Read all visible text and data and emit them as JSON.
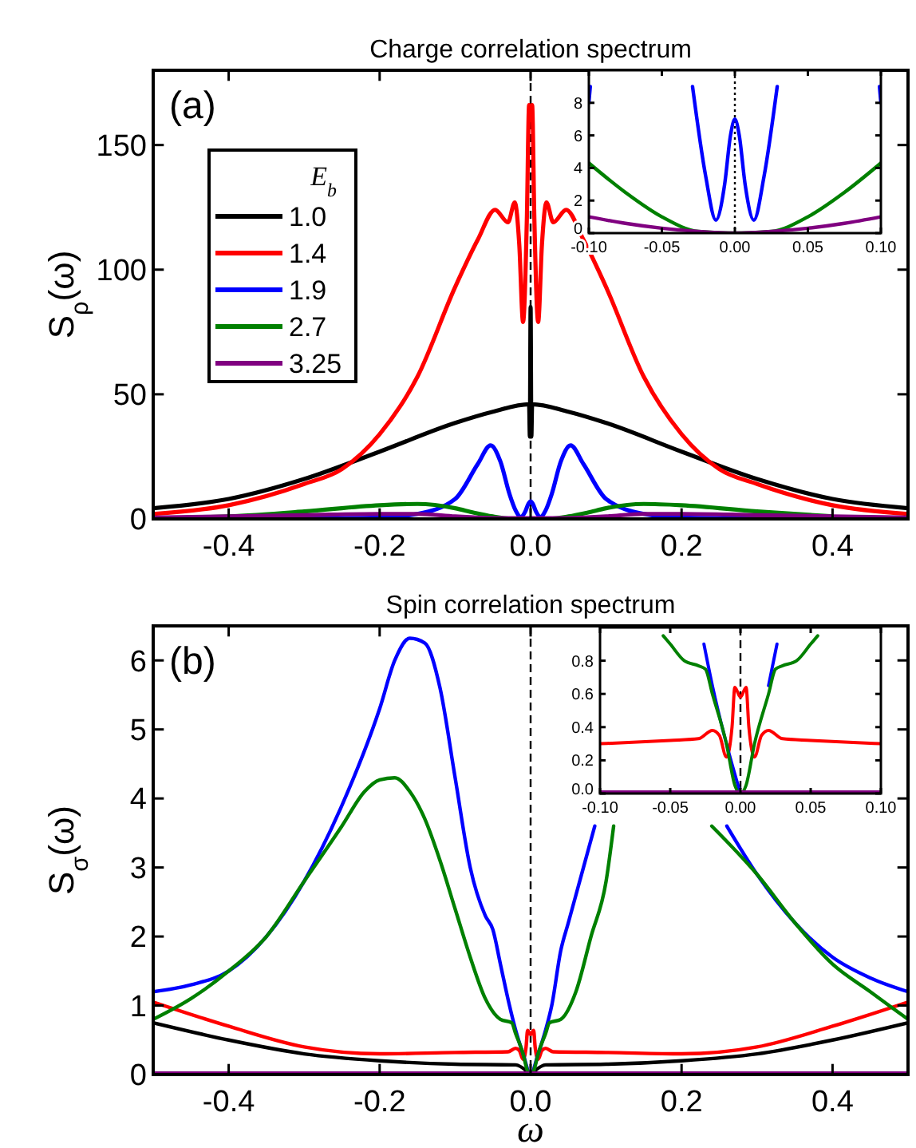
{
  "chart_data": [
    {
      "type": "line",
      "title": "Charge correlation spectrum",
      "ylabel": "S$_{ρ}$(ω)",
      "annotations": [
        "(a)"
      ],
      "legend": "top left",
      "legend_title": "E$_{b}$",
      "xlim": [
        -0.5,
        0.5
      ],
      "ylim": [
        0,
        180
      ],
      "xticks": [
        {
          "value": -0.4,
          "label": "-0.4"
        },
        {
          "value": -0.2,
          "label": "-0.2"
        },
        {
          "value": 0,
          "label": "0.0"
        },
        {
          "value": 0.2,
          "label": "0.2"
        },
        {
          "value": 0.4,
          "label": "0.4"
        }
      ],
      "yticks": [
        0,
        50,
        100,
        150
      ],
      "ref_lines": [
        {
          "axis": "x",
          "value": 0,
          "line_style": "dashed"
        }
      ],
      "series": [
        {
          "name": "1.0",
          "color": "#000000",
          "x": [
            -0.5,
            -0.4,
            -0.3,
            -0.2,
            -0.1,
            -0.05,
            -0.002,
            -0.001,
            0,
            0.001,
            0.002,
            0.05,
            0.1,
            0.2,
            0.3,
            0.4,
            0.5
          ],
          "values": [
            4.3,
            8,
            16,
            27,
            38.5,
            43,
            46,
            33,
            85,
            33,
            46,
            43,
            38.5,
            27,
            16,
            8,
            4.3
          ]
        },
        {
          "name": "1.4",
          "color": "#ff0000",
          "x": [
            -0.5,
            -0.4,
            -0.3,
            -0.25,
            -0.2,
            -0.15,
            -0.1,
            -0.07,
            -0.047,
            -0.03,
            -0.021,
            -0.015,
            -0.01,
            -0.005,
            -0.002,
            0,
            0.002,
            0.005,
            0.01,
            0.015,
            0.021,
            0.03,
            0.047,
            0.07,
            0.1,
            0.15,
            0.2,
            0.25,
            0.3,
            0.4,
            0.5
          ],
          "values": [
            2,
            5.5,
            14,
            20,
            34,
            57,
            93,
            112,
            124,
            119,
            127,
            110,
            79,
            120,
            166,
            160,
            166,
            120,
            79,
            110,
            127,
            119,
            124,
            112,
            93,
            57,
            34,
            20,
            14,
            5.5,
            2
          ]
        },
        {
          "name": "1.9",
          "color": "#0000ff",
          "x": [
            -0.5,
            -0.3,
            -0.2,
            -0.15,
            -0.1,
            -0.07,
            -0.053,
            -0.04,
            -0.028,
            -0.02,
            -0.013,
            -0.007,
            -0.003,
            0,
            0.003,
            0.007,
            0.013,
            0.02,
            0.028,
            0.04,
            0.053,
            0.07,
            0.1,
            0.15,
            0.2,
            0.3,
            0.5
          ],
          "values": [
            0,
            0.1,
            0.5,
            2,
            8,
            22,
            29.5,
            23,
            10,
            3.5,
            0.8,
            3,
            6,
            7,
            6,
            3,
            0.8,
            3.5,
            10,
            23,
            29.5,
            22,
            8,
            2,
            0.5,
            0.1,
            0
          ]
        },
        {
          "name": "2.7",
          "color": "#008000",
          "x": [
            -0.5,
            -0.4,
            -0.3,
            -0.2,
            -0.15,
            -0.1,
            -0.075,
            -0.05,
            -0.025,
            0,
            0.025,
            0.05,
            0.075,
            0.1,
            0.15,
            0.2,
            0.3,
            0.4
          ],
          "values": [
            0.3,
            1,
            3,
            5.5,
            6,
            4.3,
            2.5,
            1,
            0.1,
            0,
            0.1,
            1,
            2.5,
            4.3,
            6,
            5.5,
            3,
            1
          ]
        },
        {
          "name": "3.25",
          "color": "#800080",
          "x": [
            -0.5,
            -0.3,
            -0.2,
            -0.15,
            -0.1,
            -0.075,
            -0.05,
            0.05,
            0.075,
            0.1,
            0.15,
            0.2,
            0.3,
            0.5
          ],
          "values": [
            0.5,
            1.5,
            2,
            2,
            1,
            0.6,
            0.3,
            0.3,
            0.6,
            1,
            2,
            2,
            1.5,
            0.5
          ]
        }
      ]
    },
    {
      "type": "line",
      "xlim": [
        -0.1,
        0.1
      ],
      "ylim": [
        0,
        10
      ],
      "xticks": [
        {
          "value": -0.1,
          "label": "-0.10"
        },
        {
          "value": -0.05,
          "label": "-0.05"
        },
        {
          "value": 0,
          "label": "0.00"
        },
        {
          "value": 0.05,
          "label": "0.05"
        },
        {
          "value": 0.1,
          "label": "0.10"
        }
      ],
      "yticks": [
        0,
        2,
        4,
        6,
        8
      ],
      "ref_lines": [
        {
          "axis": "x",
          "value": 0,
          "line_style": "dotted"
        }
      ],
      "series": [
        {
          "color": "#0000ff",
          "x": [
            -0.1,
            -0.099,
            -0.06,
            -0.029,
            -0.02,
            -0.013,
            -0.007,
            -0.003,
            0,
            0.003,
            0.007,
            0.013,
            0.02,
            0.029,
            0.06,
            0.099,
            0.1
          ],
          "values": [
            8,
            9,
            null,
            9,
            3.5,
            0.8,
            3,
            6,
            7,
            6,
            3,
            0.8,
            3.5,
            9,
            null,
            9,
            8
          ]
        },
        {
          "color": "#008000",
          "x": [
            -0.1,
            -0.075,
            -0.05,
            -0.025,
            0,
            0.025,
            0.05,
            0.075,
            0.1
          ],
          "values": [
            4.3,
            2.5,
            1,
            0.1,
            0,
            0.1,
            1,
            2.5,
            4.3
          ]
        },
        {
          "color": "#800080",
          "x": [
            -0.1,
            -0.075,
            -0.05,
            -0.025,
            0,
            0.025,
            0.05,
            0.075,
            0.1
          ],
          "values": [
            1,
            0.6,
            0.3,
            0.1,
            0,
            0.1,
            0.3,
            0.6,
            1
          ]
        }
      ]
    },
    {
      "type": "line",
      "title": "Spin correlation spectrum",
      "xlabel": "ω",
      "ylabel": "S$_{σ}$(ω)",
      "annotations": [
        "(b)"
      ],
      "xlim": [
        -0.5,
        0.5
      ],
      "ylim": [
        0,
        6.5
      ],
      "xticks": [
        {
          "value": -0.4,
          "label": "-0.4"
        },
        {
          "value": -0.2,
          "label": "-0.2"
        },
        {
          "value": 0,
          "label": "0.0"
        },
        {
          "value": 0.2,
          "label": "0.2"
        },
        {
          "value": 0.4,
          "label": "0.4"
        }
      ],
      "yticks": [
        0,
        1,
        2,
        3,
        4,
        5,
        6
      ],
      "ref_lines": [
        {
          "axis": "x",
          "value": 0,
          "line_style": "dashed"
        }
      ],
      "series": [
        {
          "color": "#000000",
          "x": [
            -0.5,
            -0.4,
            -0.3,
            -0.2,
            -0.1,
            -0.02,
            -0.005,
            0,
            0.005,
            0.02,
            0.1,
            0.2,
            0.3,
            0.4,
            0.5
          ],
          "values": [
            0.75,
            0.5,
            0.3,
            0.2,
            0.15,
            0.14,
            0.05,
            0,
            0.05,
            0.14,
            0.15,
            0.2,
            0.3,
            0.5,
            0.75
          ]
        },
        {
          "color": "#ff0000",
          "x": [
            -0.5,
            -0.4,
            -0.3,
            -0.2,
            -0.1,
            -0.03,
            -0.02,
            -0.015,
            -0.01,
            -0.006,
            -0.004,
            0,
            0.004,
            0.006,
            0.01,
            0.015,
            0.02,
            0.03,
            0.1,
            0.2,
            0.3,
            0.4,
            0.5
          ],
          "values": [
            1.05,
            0.7,
            0.4,
            0.3,
            0.32,
            0.33,
            0.38,
            0.35,
            0.22,
            0.4,
            0.64,
            0.58,
            0.64,
            0.4,
            0.22,
            0.35,
            0.38,
            0.33,
            0.32,
            0.3,
            0.4,
            0.7,
            1.05
          ]
        },
        {
          "color": "#0000ff",
          "x": [
            -0.5,
            -0.45,
            -0.4,
            -0.35,
            -0.3,
            -0.25,
            -0.2,
            -0.18,
            -0.16,
            -0.14,
            -0.12,
            -0.1,
            -0.08,
            -0.06,
            -0.05,
            -0.04,
            -0.028,
            -0.02,
            -0.01,
            0,
            0.01,
            0.02,
            0.028,
            0.04,
            0.05,
            0.07,
            0.085,
            0.15,
            0.2,
            0.26,
            0.3,
            0.35,
            0.4,
            0.45,
            0.5
          ],
          "values": [
            1.2,
            1.3,
            1.5,
            2.0,
            2.8,
            3.9,
            5.3,
            6.0,
            6.32,
            6.25,
            5.6,
            4.3,
            3.0,
            2.3,
            2.1,
            1.6,
            1.0,
            0.65,
            0.3,
            0,
            0.3,
            0.65,
            1.0,
            1.8,
            2.2,
            3.0,
            3.6,
            null,
            null,
            3.6,
            2.9,
            2.2,
            1.7,
            1.4,
            1.2
          ]
        },
        {
          "color": "#008000",
          "x": [
            -0.5,
            -0.45,
            -0.4,
            -0.35,
            -0.3,
            -0.25,
            -0.22,
            -0.2,
            -0.18,
            -0.16,
            -0.14,
            -0.12,
            -0.1,
            -0.08,
            -0.06,
            -0.04,
            -0.025,
            -0.02,
            -0.01,
            -0.004,
            0,
            0.004,
            0.01,
            0.02,
            0.025,
            0.04,
            0.06,
            0.08,
            0.1,
            0.11,
            0.15,
            0.2,
            0.24,
            0.3,
            0.35,
            0.4,
            0.45,
            0.5
          ],
          "values": [
            0.8,
            1.1,
            1.5,
            2.0,
            2.8,
            3.6,
            4.1,
            4.27,
            4.3,
            4.1,
            3.7,
            3.1,
            2.4,
            1.7,
            1.1,
            0.8,
            0.75,
            0.6,
            0.3,
            0.05,
            0,
            0.05,
            0.3,
            0.6,
            0.75,
            0.8,
            1.2,
            2.0,
            2.8,
            3.6,
            null,
            null,
            3.6,
            2.9,
            2.2,
            1.6,
            1.2,
            0.8
          ]
        },
        {
          "color": "#800080",
          "x": [
            -0.5,
            0.5
          ],
          "values": [
            0.02,
            0.02
          ]
        }
      ]
    },
    {
      "type": "line",
      "xlim": [
        -0.1,
        0.1
      ],
      "ylim": [
        0,
        1
      ],
      "xticks": [
        {
          "value": -0.1,
          "label": "-0.10"
        },
        {
          "value": -0.05,
          "label": "-0.05"
        },
        {
          "value": 0,
          "label": "0.00"
        },
        {
          "value": 0.05,
          "label": "0.05"
        },
        {
          "value": 0.1,
          "label": "0.10"
        }
      ],
      "yticks": [
        {
          "value": 0,
          "label": "0.0"
        },
        {
          "value": 0.2,
          "label": "0.2"
        },
        {
          "value": 0.4,
          "label": "0.4"
        },
        {
          "value": 0.6,
          "label": "0.6"
        },
        {
          "value": 0.8,
          "label": "0.8"
        }
      ],
      "ref_lines": [
        {
          "axis": "x",
          "value": 0,
          "line_style": "dashed"
        }
      ],
      "series": [
        {
          "color": "#ff0000",
          "x": [
            -0.1,
            -0.05,
            -0.03,
            -0.02,
            -0.015,
            -0.01,
            -0.006,
            -0.004,
            0,
            0.004,
            0.006,
            0.01,
            0.015,
            0.02,
            0.03,
            0.05,
            0.1
          ],
          "values": [
            0.3,
            0.32,
            0.33,
            0.38,
            0.35,
            0.22,
            0.4,
            0.64,
            0.58,
            0.64,
            0.4,
            0.22,
            0.35,
            0.38,
            0.33,
            0.32,
            0.3
          ]
        },
        {
          "color": "#0000ff",
          "x": [
            -0.026,
            -0.02,
            -0.01,
            0,
            0.01,
            0.02,
            0.026
          ],
          "values": [
            0.9,
            0.65,
            0.3,
            0,
            null,
            0.65,
            0.9
          ]
        },
        {
          "color": "#008000",
          "x": [
            -0.055,
            -0.05,
            -0.04,
            -0.03,
            -0.025,
            -0.02,
            -0.01,
            -0.004,
            0,
            0.004,
            0.01,
            0.02,
            0.025,
            0.03,
            0.04,
            0.05,
            0.055
          ],
          "values": [
            0.95,
            0.9,
            0.8,
            0.77,
            0.75,
            0.6,
            0.3,
            0.05,
            0,
            0.05,
            0.3,
            0.6,
            0.75,
            0.77,
            0.8,
            0.9,
            0.95
          ]
        },
        {
          "color": "#800080",
          "x": [
            -0.1,
            0.1
          ],
          "values": [
            0.01,
            0.01
          ]
        }
      ]
    }
  ]
}
